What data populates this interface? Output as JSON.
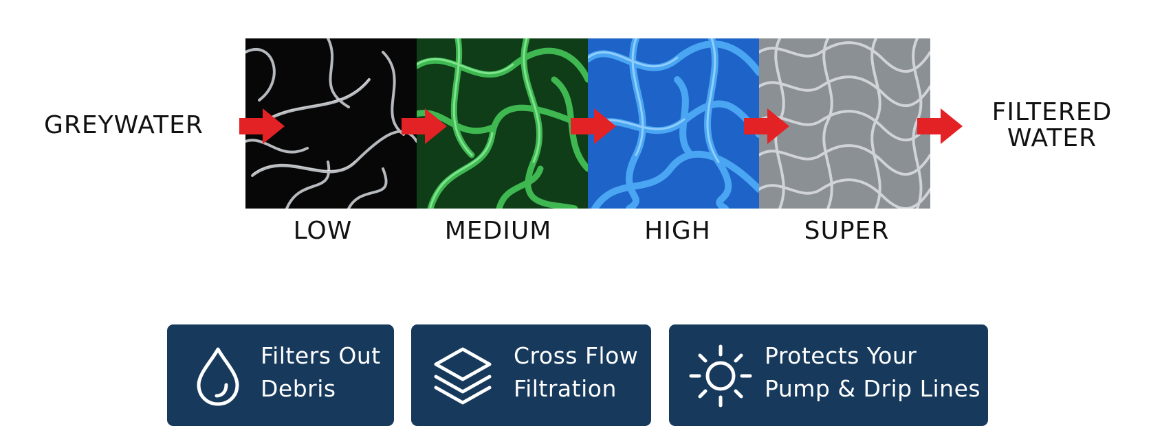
{
  "flow": {
    "input_label": "GREYWATER",
    "output_label_line1": "FILTERED",
    "output_label_line2": "WATER",
    "arrow_color": "#e32226"
  },
  "stages": [
    {
      "label": "LOW",
      "media_color": "#0b0b0b",
      "fiber_color": "#cfd3d6"
    },
    {
      "label": "MEDIUM",
      "media_color": "#1f6b2a",
      "fiber_color": "#5fd36f"
    },
    {
      "label": "HIGH",
      "media_color": "#1f6fd6",
      "fiber_color": "#6fc0ff"
    },
    {
      "label": "SUPER",
      "media_color": "#8e9398",
      "fiber_color": "#e8eaec"
    }
  ],
  "features": [
    {
      "icon": "water-drop-icon",
      "line1": "Filters Out",
      "line2": "Debris"
    },
    {
      "icon": "layers-icon",
      "line1": "Cross Flow",
      "line2": "Filtration"
    },
    {
      "icon": "sun-icon",
      "line1": "Protects Your",
      "line2": "Pump & Drip Lines"
    }
  ],
  "colors": {
    "card_background": "#17395c",
    "card_text": "#ffffff"
  }
}
